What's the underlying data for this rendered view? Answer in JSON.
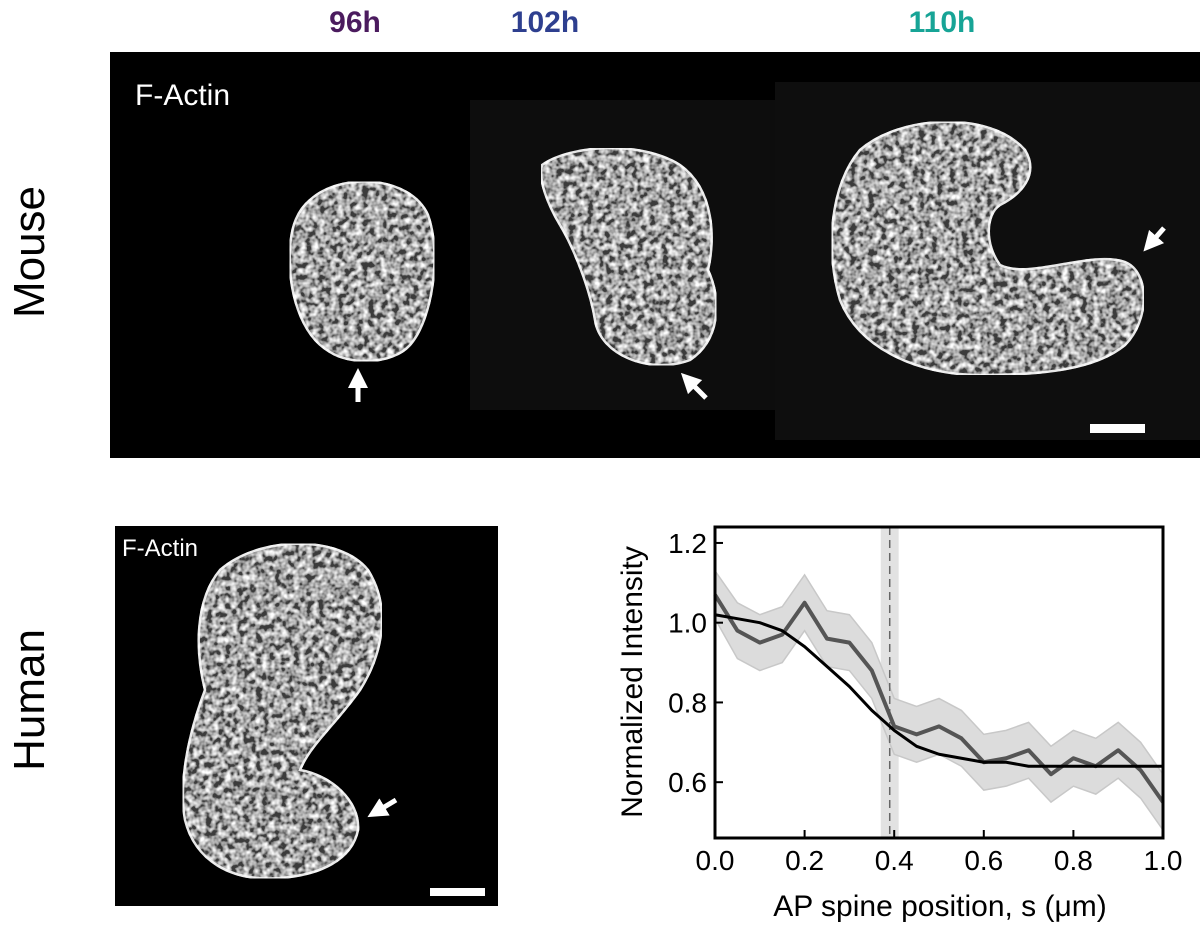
{
  "figure": {
    "time_labels": [
      {
        "text": "96h",
        "color": "#4b1b5e"
      },
      {
        "text": "102h",
        "color": "#2e3f8f"
      },
      {
        "text": "110h",
        "color": "#17a496"
      }
    ],
    "mouse": {
      "row_label": "Mouse",
      "image_label": "F-Actin"
    },
    "human": {
      "row_label": "Human",
      "image_label": "F-Actin"
    }
  },
  "chart_data": {
    "type": "line",
    "xlabel": "AP spine position, s (μm)",
    "ylabel": "Normalized Intensity",
    "xlim": [
      0,
      1
    ],
    "ylim": [
      0.46,
      1.24
    ],
    "xticks": [
      {
        "value": 0,
        "label": "0.0"
      },
      0.2,
      0.4,
      0.6,
      0.8,
      {
        "value": 1,
        "label": "1.0"
      }
    ],
    "yticks": [
      0.6,
      0.8,
      {
        "value": 1,
        "label": "1.0"
      },
      1.2
    ],
    "x": [
      0,
      0.05,
      0.1,
      0.15,
      0.2,
      0.25,
      0.3,
      0.35,
      0.4,
      0.45,
      0.5,
      0.55,
      0.6,
      0.65,
      0.7,
      0.75,
      0.8,
      0.85,
      0.9,
      0.95,
      1.0
    ],
    "band": {
      "color": "#dcdcdc",
      "upper": [
        1.13,
        1.05,
        1.02,
        1.04,
        1.12,
        1.03,
        1.02,
        0.95,
        0.81,
        0.79,
        0.81,
        0.78,
        0.72,
        0.73,
        0.75,
        0.69,
        0.73,
        0.71,
        0.75,
        0.7,
        0.62
      ],
      "lower": [
        1.01,
        0.91,
        0.88,
        0.9,
        0.98,
        0.89,
        0.88,
        0.81,
        0.67,
        0.65,
        0.67,
        0.64,
        0.58,
        0.59,
        0.61,
        0.55,
        0.59,
        0.57,
        0.61,
        0.56,
        0.48
      ]
    },
    "series": [
      {
        "color": "#555555",
        "values": [
          1.07,
          0.98,
          0.95,
          0.97,
          1.05,
          0.96,
          0.95,
          0.88,
          0.74,
          0.72,
          0.74,
          0.71,
          0.65,
          0.66,
          0.68,
          0.62,
          0.66,
          0.64,
          0.68,
          0.63,
          0.55
        ]
      },
      {
        "color": "#000000",
        "values": [
          1.02,
          1.01,
          1.0,
          0.98,
          0.94,
          0.89,
          0.84,
          0.78,
          0.73,
          0.69,
          0.67,
          0.66,
          0.65,
          0.65,
          0.64,
          0.64,
          0.64,
          0.64,
          0.64,
          0.64,
          0.64
        ]
      }
    ],
    "vline": 0.39,
    "vspan": [
      0.37,
      0.41
    ],
    "vspan_color": "#e2e2e2"
  }
}
